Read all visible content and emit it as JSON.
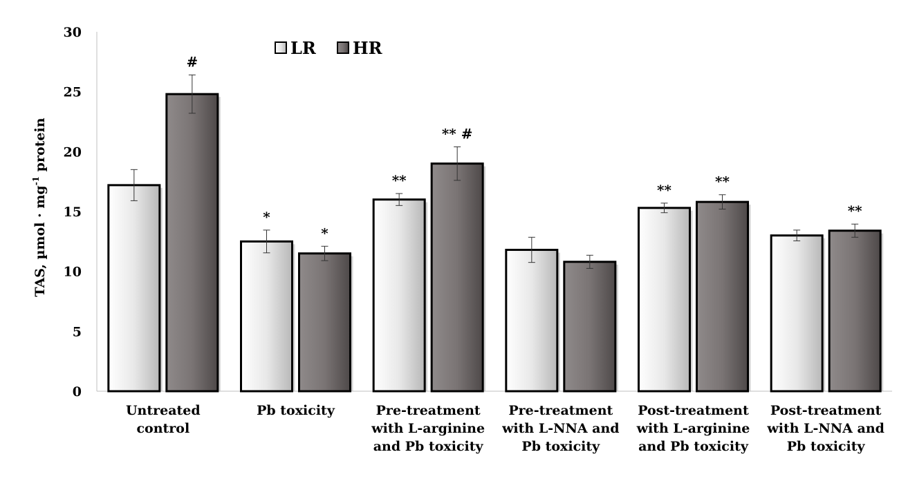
{
  "chart_data": {
    "type": "bar",
    "ylabel": "TAS, µmol · mg",
    "ylabel_sup": "-1",
    "ylabel_suffix": " protein",
    "ylim": [
      0,
      30
    ],
    "yticks": [
      "0",
      "5",
      "10",
      "15",
      "20",
      "25",
      "30"
    ],
    "ytick_values": [
      0,
      5,
      10,
      15,
      20,
      25,
      30
    ],
    "grid": false,
    "legend_position": "top",
    "categories": [
      [
        "Untreated",
        "control"
      ],
      [
        "Pb toxicity"
      ],
      [
        "Pre-treatment",
        "with L-arginine",
        "and Pb toxicity"
      ],
      [
        "Pre-treatment",
        "with L-NNA and",
        "Pb toxicity"
      ],
      [
        "Post-treatment",
        "with L-arginine",
        "and Pb toxicity"
      ],
      [
        "Post-treatment",
        "with L-NNA and",
        "Pb toxicity"
      ]
    ],
    "series": [
      {
        "name": "LR",
        "color": "#e6e6e6",
        "values": [
          17.2,
          12.5,
          16.0,
          11.8,
          15.3,
          13.0
        ],
        "errors": [
          1.3,
          0.95,
          0.5,
          1.05,
          0.4,
          0.45
        ],
        "annotations": [
          "",
          "*",
          "**",
          "",
          "**",
          ""
        ]
      },
      {
        "name": "HR",
        "color": "#7a7474",
        "values": [
          24.8,
          11.5,
          19.0,
          10.8,
          15.8,
          13.4
        ],
        "errors": [
          1.6,
          0.6,
          1.4,
          0.55,
          0.6,
          0.55
        ],
        "annotations": [
          "#",
          "*",
          "** #",
          "",
          "**",
          "**"
        ]
      }
    ]
  }
}
